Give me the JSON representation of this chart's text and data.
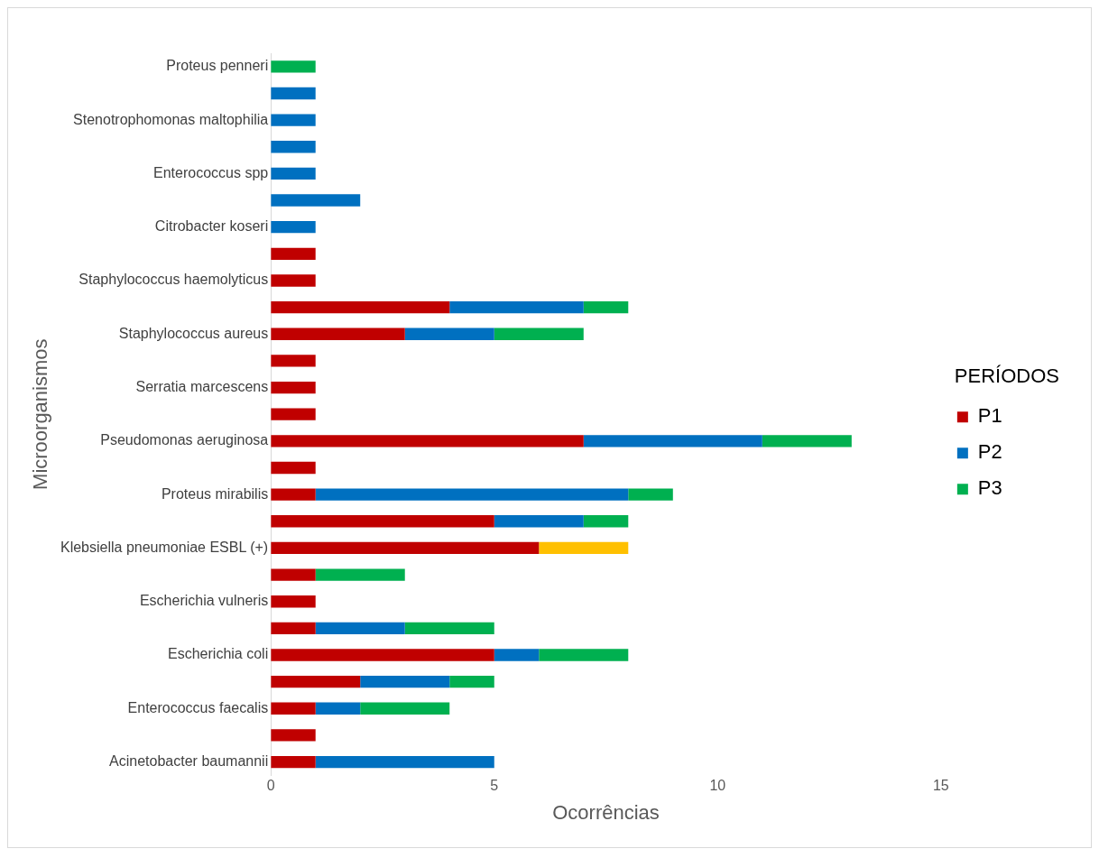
{
  "chart_data": {
    "type": "bar",
    "orientation": "horizontal",
    "stacked": true,
    "xlabel": "Ocorrências",
    "ylabel": "Microorganismos",
    "legend_title": "PERÍODOS",
    "legend": "right",
    "grid": false,
    "xlim": [
      0,
      15
    ],
    "xticks": [
      0,
      5,
      10,
      15
    ],
    "categories": [
      "Proteus penneri",
      null,
      "Stenotrophomonas maltophilia",
      null,
      "Enterococcus spp",
      null,
      "Citrobacter koseri",
      null,
      "Staphylococcus haemolyticus",
      null,
      "Staphylococcus aureus",
      null,
      "Serratia marcescens",
      null,
      "Pseudomonas aeruginosa",
      null,
      "Proteus mirabilis",
      null,
      "Klebsiella pneumoniae ESBL (+)",
      null,
      "Escherichia vulneris",
      null,
      "Escherichia coli",
      null,
      "Enterococcus faecalis",
      null,
      "Acinetobacter baumannii"
    ],
    "series": [
      {
        "name": "P1",
        "color": "#c00000",
        "values": [
          null,
          null,
          null,
          null,
          null,
          null,
          null,
          1,
          1,
          4,
          3,
          1,
          1,
          1,
          7,
          1,
          1,
          5,
          6,
          1,
          1,
          1,
          5,
          2,
          1,
          1,
          1
        ]
      },
      {
        "name": "P2",
        "color": "#0070c0",
        "values": [
          null,
          1,
          1,
          1,
          1,
          2,
          1,
          null,
          null,
          3,
          2,
          null,
          null,
          null,
          4,
          null,
          7,
          2,
          null,
          null,
          null,
          2,
          1,
          2,
          1,
          null,
          4
        ]
      },
      {
        "name": "P3",
        "color": "#00b050",
        "values": [
          1,
          null,
          null,
          null,
          null,
          null,
          null,
          null,
          null,
          1,
          2,
          null,
          null,
          null,
          2,
          null,
          1,
          1,
          null,
          2,
          null,
          2,
          2,
          1,
          2,
          null,
          null
        ]
      },
      {
        "color": "#ffc000",
        "values": [
          null,
          null,
          null,
          null,
          null,
          null,
          null,
          null,
          null,
          null,
          null,
          null,
          null,
          null,
          null,
          null,
          null,
          null,
          2,
          null,
          null,
          null,
          null,
          null,
          null,
          null,
          null
        ]
      }
    ]
  }
}
